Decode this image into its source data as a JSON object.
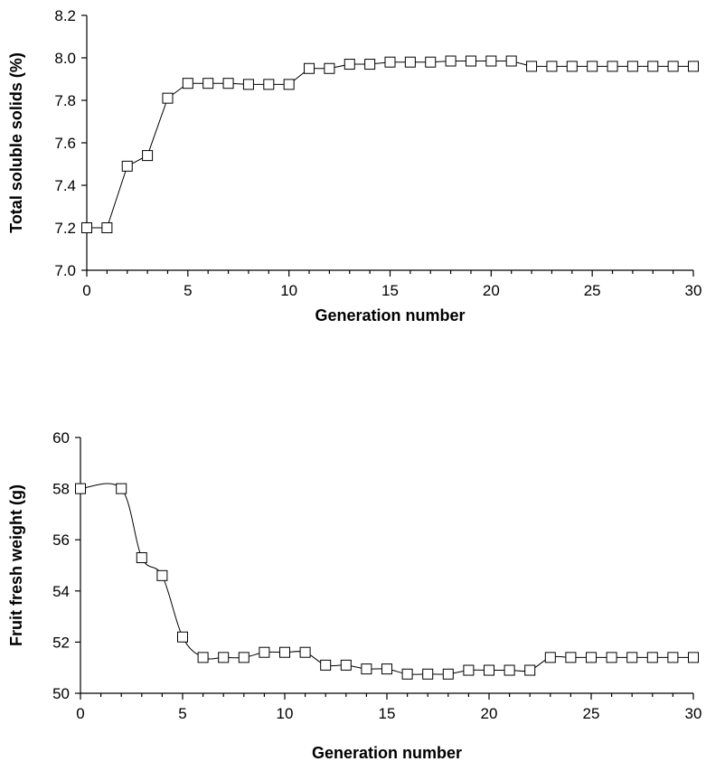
{
  "chart_data": [
    {
      "type": "line",
      "title": "",
      "xlabel": "Generation number",
      "ylabel": "Total soluble solids (%)",
      "xlim": [
        0,
        30
      ],
      "ylim": [
        7.0,
        8.2
      ],
      "xticks": [
        "0",
        "5",
        "10",
        "15",
        "20",
        "25",
        "30"
      ],
      "yticks": [
        "7.0",
        "7.2",
        "7.4",
        "7.6",
        "7.8",
        "8.0",
        "8.2"
      ],
      "grid": false,
      "marker": "open-square",
      "smooth": false,
      "x": [
        0,
        1,
        2,
        3,
        4,
        5,
        6,
        7,
        8,
        9,
        10,
        11,
        12,
        13,
        14,
        15,
        16,
        17,
        18,
        19,
        20,
        21,
        22,
        23,
        24,
        25,
        26,
        27,
        28,
        29,
        30
      ],
      "values": [
        7.2,
        7.2,
        7.49,
        7.54,
        7.81,
        7.88,
        7.88,
        7.88,
        7.875,
        7.875,
        7.875,
        7.95,
        7.95,
        7.97,
        7.97,
        7.98,
        7.98,
        7.98,
        7.985,
        7.985,
        7.985,
        7.985,
        7.96,
        7.96,
        7.96,
        7.96,
        7.96,
        7.96,
        7.96,
        7.96,
        7.96
      ]
    },
    {
      "type": "line",
      "title": "",
      "xlabel": "Generation number",
      "ylabel": "Fruit fresh weight (g)",
      "xlim": [
        0,
        30
      ],
      "ylim": [
        50,
        60
      ],
      "xticks": [
        "0",
        "5",
        "10",
        "15",
        "20",
        "25",
        "30"
      ],
      "yticks": [
        "50",
        "52",
        "54",
        "56",
        "58",
        "60"
      ],
      "grid": false,
      "marker": "open-square",
      "smooth": true,
      "x": [
        0,
        2,
        3,
        4,
        5,
        6,
        7,
        8,
        9,
        10,
        11,
        12,
        13,
        14,
        15,
        16,
        17,
        18,
        19,
        20,
        21,
        22,
        23,
        24,
        25,
        26,
        27,
        28,
        29,
        30
      ],
      "values": [
        58.0,
        58.0,
        55.3,
        54.6,
        52.2,
        51.4,
        51.4,
        51.4,
        51.6,
        51.6,
        51.6,
        51.1,
        51.1,
        50.95,
        50.95,
        50.75,
        50.75,
        50.75,
        50.9,
        50.9,
        50.9,
        50.9,
        51.4,
        51.4,
        51.4,
        51.4,
        51.4,
        51.4,
        51.4,
        51.4
      ]
    }
  ]
}
